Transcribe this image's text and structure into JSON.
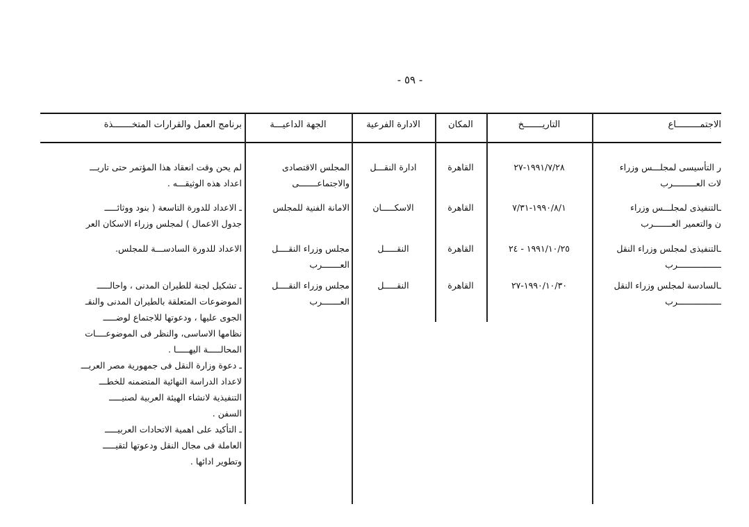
{
  "page_number": "- ٥٩ -",
  "table": {
    "headers": [
      "الاجتمـــــــــاع",
      "التاريـــــــخ",
      "المكان",
      "الادارة الفرعية",
      "الجهة الداعيـــة",
      "برنامج العمل والقرارات المتخـــــــذة"
    ],
    "rows": [
      {
        "meeting": [
          "ر التأسيسى لمجلـــس وزراء",
          "لات العـــــــــرب"
        ],
        "date": "١٩٩١/٧/٢٨-٢٧",
        "place": "القاهرة",
        "department": "ادارة النقـــل",
        "inviting_body": [
          "المجلس الاقتصادى",
          "والاجتماعـــــــى"
        ],
        "program": [
          "لم يحن وقت انعقاد هذا المؤتمر حتى تاريـــ",
          "اعداد هذه الوثيقـــه ."
        ]
      },
      {
        "meeting": [
          "ـالتنفيذى لمجلـــس وزراء",
          "ن والتعمير العـــــــرب"
        ],
        "date": "١٩٩٠/٨/١-٧/٣١",
        "place": "القاهرة",
        "department": "الاسكـــــان",
        "inviting_body": [
          "الامانة الفنية للمجلس"
        ],
        "program": [
          "ـ الاعداد للدورة التاسعة ( بنود ووثائـــــ",
          "جدول الاعمال ) لمجلس وزراء الاسكان العر"
        ]
      },
      {
        "meeting": [
          "ـالتنفيذى لمجلس وزراء النقل",
          "ـــــــــــــــــرب"
        ],
        "date": "١٩٩١/١٠/٢٥ - ٢٤",
        "place": "القاهرة",
        "department": "النقـــــل",
        "inviting_body": [
          "مجلس وزراء النقــــل",
          "العـــــــرب"
        ],
        "program": [
          "الاعداد للدورة السادســـة للمجلس."
        ]
      },
      {
        "meeting": [
          "ـالسادسة لمجلس وزراء النقل",
          "ـــــــــــــــــرب"
        ],
        "date": "١٩٩٠/١٠/٣٠-٢٧",
        "place": "القاهرة",
        "department": "النقـــــل",
        "inviting_body": [
          "مجلس وزراء النقــــل",
          "العـــــــرب"
        ],
        "program": [
          "ـ تشكيل لجنة للطيران المدنى ، واحالـــــ",
          "الموضوعات المتعلقة بالطيران المدنى والنقـ",
          "الجوى عليها ، ودعوتها للاجتماع لوضـــــ",
          "نظامها الاساسى، والنظر فى الموضوعــــات",
          "المحالـــــة اليهـــــا .",
          "ـ دعوة وزارة النقل فى جمهورية مصر العربـــ",
          "لاعداد الدراسة النهائية المتضمنه للخطـــ",
          "التنفيذية لانشاء الهيئة العربية لصنيـــــ",
          "السفن .",
          "ـ التأكيد على اهمية الاتحادات العربيـــــ",
          "العاملة فى مجال النقل ودعوتها لتقيـــــ",
          "وتطوير ادائها ."
        ]
      }
    ]
  }
}
